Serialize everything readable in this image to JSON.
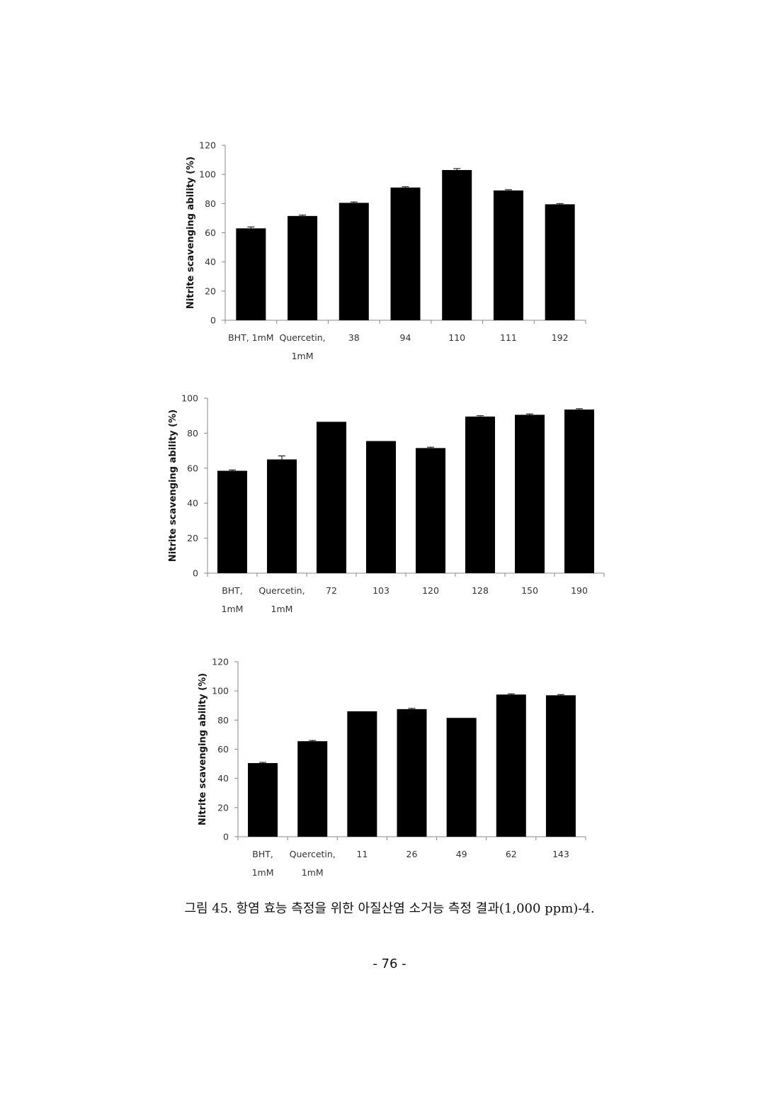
{
  "chart_data": [
    {
      "type": "bar",
      "ylabel": "Nitrite scavenging ability (%)",
      "ylim": [
        0,
        120
      ],
      "yticks": [
        0,
        20,
        40,
        60,
        80,
        100,
        120
      ],
      "categories": [
        [
          "BHT, 1mM"
        ],
        [
          "Quercetin,",
          "1mM"
        ],
        [
          "38"
        ],
        [
          "94"
        ],
        [
          "110"
        ],
        [
          "111"
        ],
        [
          "192"
        ]
      ],
      "values": [
        63,
        71.5,
        80.5,
        91,
        103,
        89,
        79.5
      ],
      "errors": [
        1.0,
        0.6,
        0.6,
        0.5,
        1.0,
        0.5,
        0.5
      ],
      "bar_color": "#000000"
    },
    {
      "type": "bar",
      "ylabel": "Nitrite scavenging ability (%)",
      "ylim": [
        0,
        100
      ],
      "yticks": [
        0,
        20,
        40,
        60,
        80,
        100
      ],
      "categories": [
        [
          "BHT,",
          "1mM"
        ],
        [
          "Quercetin,",
          "1mM"
        ],
        [
          "72"
        ],
        [
          "103"
        ],
        [
          "120"
        ],
        [
          "128"
        ],
        [
          "150"
        ],
        [
          "190"
        ]
      ],
      "values": [
        58.5,
        65,
        86.5,
        75.5,
        71.5,
        89.5,
        90.5,
        93.5
      ],
      "errors": [
        0.5,
        2.0,
        0,
        0,
        0.5,
        0.5,
        0.5,
        0.5
      ],
      "bar_color": "#000000"
    },
    {
      "type": "bar",
      "ylabel": "Nitrite scavenging ability (%)",
      "ylim": [
        0,
        120
      ],
      "yticks": [
        0,
        20,
        40,
        60,
        80,
        100,
        120
      ],
      "categories": [
        [
          "BHT,",
          "1mM"
        ],
        [
          "Quercetin,",
          "1mM"
        ],
        [
          "11"
        ],
        [
          "26"
        ],
        [
          "49"
        ],
        [
          "62"
        ],
        [
          "143"
        ]
      ],
      "values": [
        50.5,
        65.5,
        86,
        87.5,
        81.5,
        97.5,
        97
      ],
      "errors": [
        0.5,
        0.5,
        0,
        0.5,
        0,
        0.5,
        0.5
      ],
      "bar_color": "#000000"
    }
  ],
  "caption": "그림 45. 항염 효능 측정을 위한 아질산염 소거능 측정 결과(1,000 ppm)-4.",
  "page_number": "- 76 -"
}
